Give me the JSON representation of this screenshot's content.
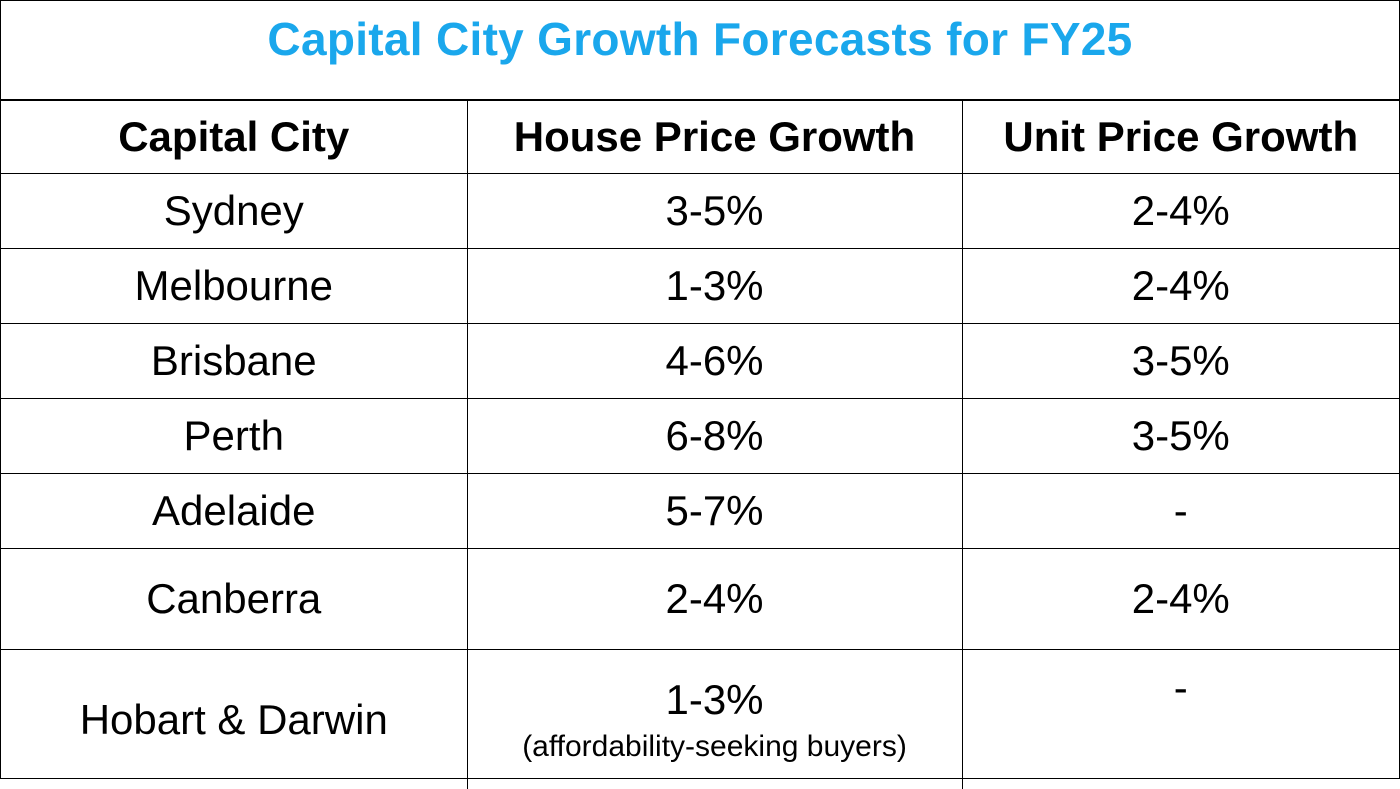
{
  "title": "Capital City Growth Forecasts for FY25",
  "title_color": "#1aa7ec",
  "chart_data": {
    "type": "table",
    "title": "Capital City Growth Forecasts for FY25",
    "columns": [
      "Capital City",
      "House Price Growth",
      "Unit Price Growth"
    ],
    "rows": [
      {
        "city": "Sydney",
        "house": "3-5%",
        "unit": "2-4%"
      },
      {
        "city": "Melbourne",
        "house": "1-3%",
        "unit": "2-4%"
      },
      {
        "city": "Brisbane",
        "house": "4-6%",
        "unit": "3-5%"
      },
      {
        "city": "Perth",
        "house": "6-8%",
        "unit": "3-5%"
      },
      {
        "city": "Adelaide",
        "house": "5-7%",
        "unit": "-"
      },
      {
        "city": "Canberra",
        "house": "2-4%",
        "unit": "2-4%"
      },
      {
        "city": "Hobart & Darwin",
        "house": "1-3%",
        "house_note": "(affordability-seeking buyers)",
        "unit": "-"
      }
    ]
  }
}
